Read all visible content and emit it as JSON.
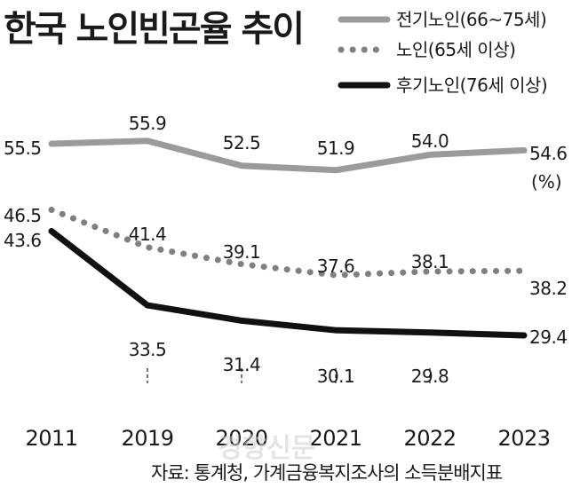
{
  "chart_data": {
    "type": "line",
    "title": "한국 노인빈곤율 추이",
    "unit": "(%)",
    "categories": [
      "2011",
      "2019",
      "2020",
      "2021",
      "2022",
      "2023"
    ],
    "series": [
      {
        "name": "전기노인(66~75세)",
        "color": "#9b9b9b",
        "style": "solid",
        "values": [
          55.5,
          55.9,
          52.5,
          51.9,
          54.0,
          54.6
        ]
      },
      {
        "name": "노인(65세 이상)",
        "color": "#808080",
        "style": "dotted",
        "values": [
          46.5,
          41.4,
          39.1,
          37.6,
          38.1,
          38.2
        ]
      },
      {
        "name": "후기노인(76세 이상)",
        "color": "#111111",
        "style": "solid",
        "values": [
          43.6,
          33.5,
          31.4,
          30.1,
          29.8,
          29.4
        ]
      }
    ],
    "grid": "vertical-dashed",
    "legend": "top-right",
    "source": "자료: 통계청, 가계금융복지조사의 소득분배지표"
  },
  "watermark": "경향신문"
}
